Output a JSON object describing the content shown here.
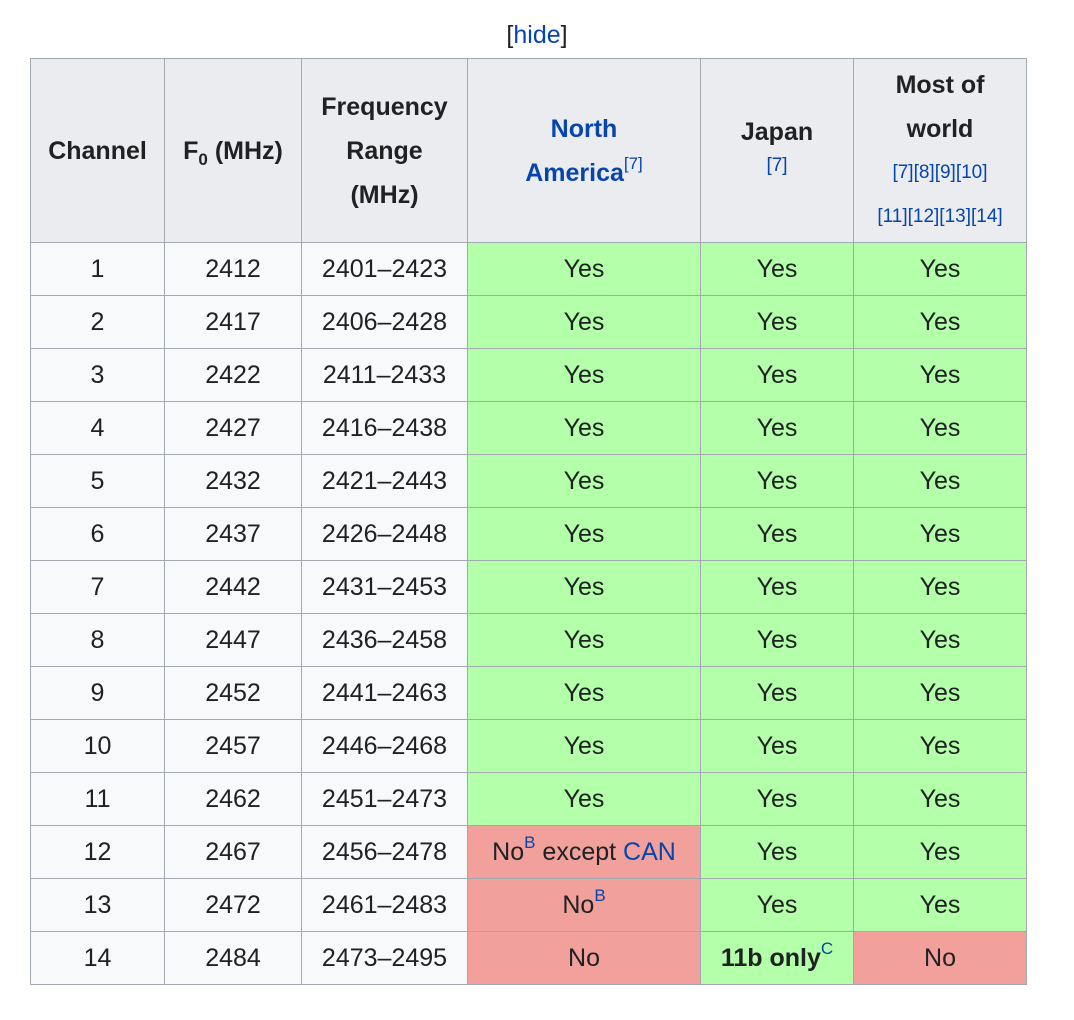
{
  "hide_link": {
    "open": "[",
    "label": "hide",
    "close": "]"
  },
  "headers": {
    "channel": "Channel",
    "f0_prefix": "F",
    "f0_sub": "0",
    "f0_suffix": " (MHz)",
    "freq_range": [
      "Frequency",
      "Range",
      "(MHz)"
    ],
    "north_america": [
      "North",
      "America"
    ],
    "north_america_ref": "[7]",
    "japan": "Japan",
    "japan_ref": "[7]",
    "most_world": [
      "Most of",
      "world"
    ],
    "most_world_refs": [
      "[7][8][9][10]",
      "[11][12][13][14]"
    ]
  },
  "rows": [
    {
      "channel": "1",
      "f0": "2412",
      "range": "2401–2423",
      "na": {
        "text": "Yes",
        "status": "yes"
      },
      "jp": {
        "text": "Yes",
        "status": "yes"
      },
      "world": {
        "text": "Yes",
        "status": "yes"
      }
    },
    {
      "channel": "2",
      "f0": "2417",
      "range": "2406–2428",
      "na": {
        "text": "Yes",
        "status": "yes"
      },
      "jp": {
        "text": "Yes",
        "status": "yes"
      },
      "world": {
        "text": "Yes",
        "status": "yes"
      }
    },
    {
      "channel": "3",
      "f0": "2422",
      "range": "2411–2433",
      "na": {
        "text": "Yes",
        "status": "yes"
      },
      "jp": {
        "text": "Yes",
        "status": "yes"
      },
      "world": {
        "text": "Yes",
        "status": "yes"
      }
    },
    {
      "channel": "4",
      "f0": "2427",
      "range": "2416–2438",
      "na": {
        "text": "Yes",
        "status": "yes"
      },
      "jp": {
        "text": "Yes",
        "status": "yes"
      },
      "world": {
        "text": "Yes",
        "status": "yes"
      }
    },
    {
      "channel": "5",
      "f0": "2432",
      "range": "2421–2443",
      "na": {
        "text": "Yes",
        "status": "yes"
      },
      "jp": {
        "text": "Yes",
        "status": "yes"
      },
      "world": {
        "text": "Yes",
        "status": "yes"
      }
    },
    {
      "channel": "6",
      "f0": "2437",
      "range": "2426–2448",
      "na": {
        "text": "Yes",
        "status": "yes"
      },
      "jp": {
        "text": "Yes",
        "status": "yes"
      },
      "world": {
        "text": "Yes",
        "status": "yes"
      }
    },
    {
      "channel": "7",
      "f0": "2442",
      "range": "2431–2453",
      "na": {
        "text": "Yes",
        "status": "yes"
      },
      "jp": {
        "text": "Yes",
        "status": "yes"
      },
      "world": {
        "text": "Yes",
        "status": "yes"
      }
    },
    {
      "channel": "8",
      "f0": "2447",
      "range": "2436–2458",
      "na": {
        "text": "Yes",
        "status": "yes"
      },
      "jp": {
        "text": "Yes",
        "status": "yes"
      },
      "world": {
        "text": "Yes",
        "status": "yes"
      }
    },
    {
      "channel": "9",
      "f0": "2452",
      "range": "2441–2463",
      "na": {
        "text": "Yes",
        "status": "yes"
      },
      "jp": {
        "text": "Yes",
        "status": "yes"
      },
      "world": {
        "text": "Yes",
        "status": "yes"
      }
    },
    {
      "channel": "10",
      "f0": "2457",
      "range": "2446–2468",
      "na": {
        "text": "Yes",
        "status": "yes"
      },
      "jp": {
        "text": "Yes",
        "status": "yes"
      },
      "world": {
        "text": "Yes",
        "status": "yes"
      }
    },
    {
      "channel": "11",
      "f0": "2462",
      "range": "2451–2473",
      "na": {
        "text": "Yes",
        "status": "yes"
      },
      "jp": {
        "text": "Yes",
        "status": "yes"
      },
      "world": {
        "text": "Yes",
        "status": "yes"
      }
    },
    {
      "channel": "12",
      "f0": "2467",
      "range": "2456–2478",
      "na": {
        "text": "No",
        "sup": "B",
        "tail": " except ",
        "link": "CAN",
        "status": "no"
      },
      "jp": {
        "text": "Yes",
        "status": "yes"
      },
      "world": {
        "text": "Yes",
        "status": "yes"
      }
    },
    {
      "channel": "13",
      "f0": "2472",
      "range": "2461–2483",
      "na": {
        "text": "No",
        "sup": "B",
        "status": "no"
      },
      "jp": {
        "text": "Yes",
        "status": "yes"
      },
      "world": {
        "text": "Yes",
        "status": "yes"
      }
    },
    {
      "channel": "14",
      "f0": "2484",
      "range": "2473–2495",
      "na": {
        "text": "No",
        "status": "no"
      },
      "jp": {
        "text": "11b only",
        "sup": "C",
        "bold": true,
        "status": "yes"
      },
      "world": {
        "text": "No",
        "status": "no"
      }
    }
  ],
  "colors": {
    "yes": "#b3ffaa",
    "no": "#f2a09b",
    "header_bg": "#eaecf0",
    "link": "#0645ad",
    "border": "#a2a9b1"
  }
}
